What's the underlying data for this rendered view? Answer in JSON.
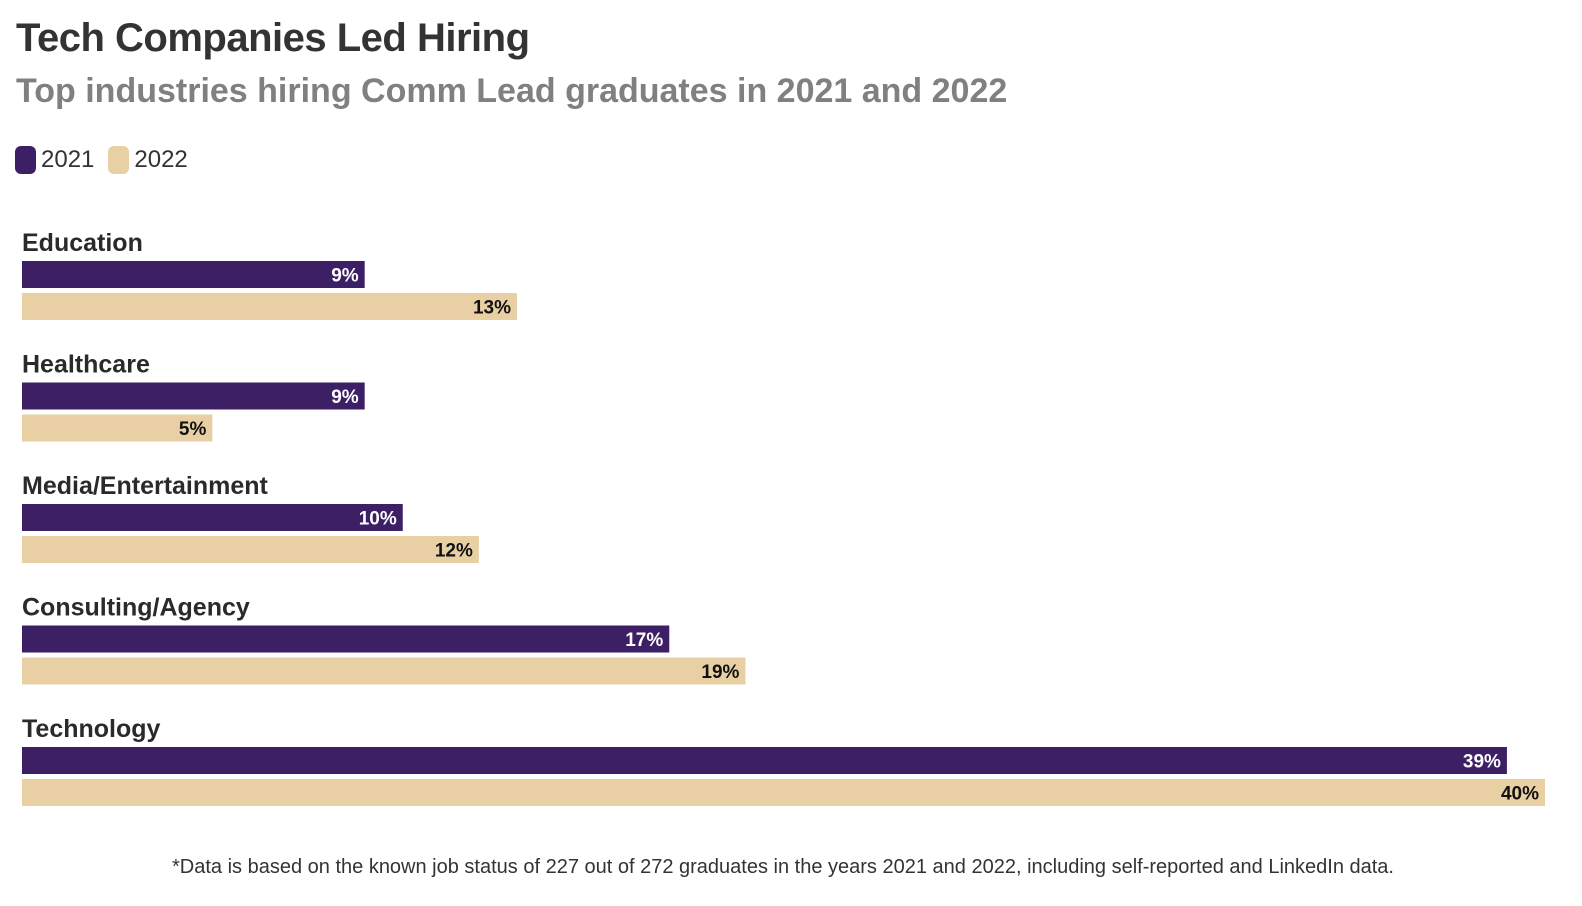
{
  "chart_data": {
    "type": "bar",
    "orientation": "horizontal",
    "title": "Tech Companies Led Hiring",
    "subtitle": "Top industries hiring Comm Lead graduates in 2021 and 2022",
    "categories": [
      "Education",
      "Healthcare",
      "Media/Entertainment",
      "Consulting/Agency",
      "Technology"
    ],
    "series": [
      {
        "name": "2021",
        "values": [
          9,
          9,
          10,
          17,
          39
        ],
        "labels": [
          "9%",
          "9%",
          "10%",
          "17%",
          "39%"
        ],
        "color": "#3d1f66",
        "label_color": "#ffffff"
      },
      {
        "name": "2022",
        "values": [
          13,
          5,
          12,
          19,
          40
        ],
        "labels": [
          "13%",
          "5%",
          "12%",
          "19%",
          "40%"
        ],
        "color": "#e8d0a4",
        "label_color": "#111111"
      }
    ],
    "xlim": [
      0,
      40
    ],
    "grid": false,
    "legend_position": "top-left",
    "footnote": "*Data is based on the known job status of 227 out of 272 graduates in the years 2021 and 2022, including self-reported and LinkedIn data."
  }
}
